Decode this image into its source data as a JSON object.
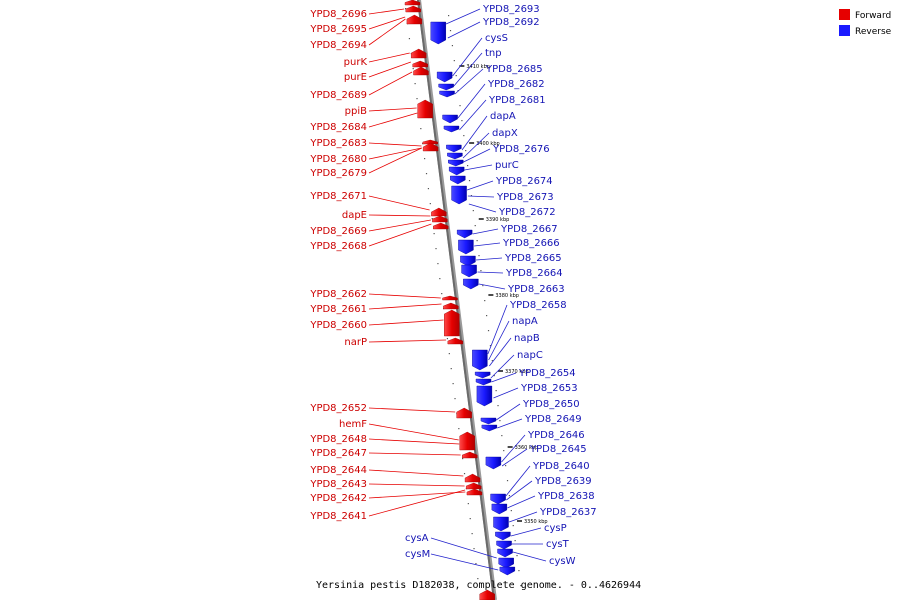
{
  "caption": "Yersinia pestis D182038, complete genome. - 0..4626944",
  "legend": [
    {
      "label": "Forward",
      "color": "#e60000"
    },
    {
      "label": "Reverse",
      "color": "#1a1aff"
    }
  ],
  "scale_ticks": [
    "3410 kbp",
    "3400 kbp",
    "3390 kbp",
    "3380 kbp",
    "3370 kbp",
    "3360 kbp",
    "3350 kbp"
  ],
  "forward_labels": [
    "YPD8_2696",
    "YPD8_2695",
    "YPD8_2694",
    "purK",
    "purE",
    "YPD8_2689",
    "ppiB",
    "YPD8_2684",
    "YPD8_2683",
    "YPD8_2680",
    "YPD8_2679",
    "YPD8_2671",
    "dapE",
    "YPD8_2669",
    "YPD8_2668",
    "YPD8_2662",
    "YPD8_2661",
    "YPD8_2660",
    "narP",
    "YPD8_2652",
    "hemF",
    "YPD8_2648",
    "YPD8_2647",
    "YPD8_2644",
    "YPD8_2643",
    "YPD8_2642",
    "YPD8_2641"
  ],
  "reverse_labels": [
    "YPD8_2693",
    "YPD8_2692",
    "cysS",
    "tnp",
    "YPD8_2685",
    "YPD8_2682",
    "YPD8_2681",
    "dapA",
    "dapX",
    "YPD8_2676",
    "purC",
    "YPD8_2674",
    "YPD8_2673",
    "YPD8_2672",
    "YPD8_2667",
    "YPD8_2666",
    "YPD8_2665",
    "YPD8_2664",
    "YPD8_2663",
    "YPD8_2658",
    "napA",
    "napB",
    "napC",
    "YPD8_2654",
    "YPD8_2653",
    "YPD8_2650",
    "YPD8_2649",
    "YPD8_2646",
    "YPD8_2645",
    "YPD8_2640",
    "YPD8_2639",
    "YPD8_2638",
    "YPD8_2637",
    "cysP",
    "cysT",
    "cysW",
    "cysA",
    "cysM"
  ]
}
